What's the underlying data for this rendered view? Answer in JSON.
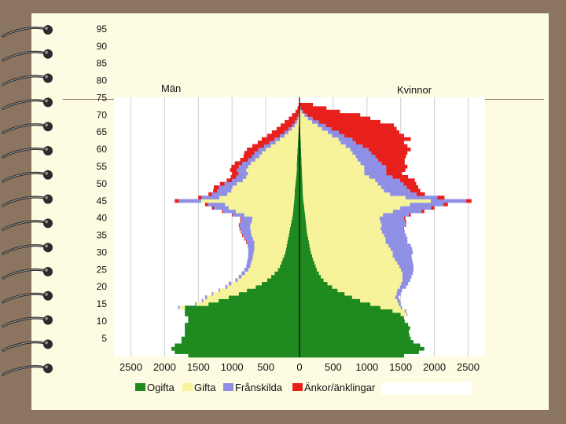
{
  "chart_data": {
    "type": "bar",
    "orientation": "population-pyramid",
    "left_title": "Män",
    "right_title": "Kvinnor",
    "x_ticks": [
      "2500",
      "2000",
      "1500",
      "1000",
      "500",
      "0",
      "500",
      "1000",
      "1500",
      "2000",
      "2500"
    ],
    "x_range": [
      -2500,
      2500
    ],
    "age_labels": [
      "5",
      "10",
      "15",
      "20",
      "25",
      "30",
      "35",
      "40",
      "45",
      "50",
      "55",
      "60",
      "65",
      "70",
      "75",
      "80",
      "85",
      "90",
      "95"
    ],
    "age_range": [
      0,
      99
    ],
    "legend": [
      {
        "key": "ogifta",
        "label": "Ogifta",
        "color": "#1f8a1f"
      },
      {
        "key": "gifta",
        "label": "Gifta",
        "color": "#f6f39a"
      },
      {
        "key": "franskilda",
        "label": "Frånskilda",
        "color": "#8f8fe6"
      },
      {
        "key": "ankor",
        "label": "Änkor/änklingar",
        "color": "#e8201c"
      }
    ],
    "men": {
      "total": [
        1650,
        1850,
        1900,
        1850,
        1750,
        1750,
        1700,
        1700,
        1700,
        1700,
        1650,
        1650,
        1700,
        1700,
        1800,
        1550,
        1450,
        1400,
        1300,
        1200,
        1100,
        1050,
        950,
        900,
        860,
        820,
        790,
        780,
        770,
        760,
        760,
        760,
        770,
        790,
        820,
        850,
        870,
        890,
        900,
        880,
        880,
        1000,
        1150,
        1300,
        1400,
        1850,
        1500,
        1350,
        1280,
        1270,
        1180,
        1080,
        1020,
        1000,
        1030,
        1010,
        960,
        880,
        830,
        820,
        780,
        700,
        620,
        560,
        480,
        410,
        340,
        280,
        220,
        160,
        110,
        60,
        30,
        10
      ],
      "ogifta": [
        1650,
        1850,
        1900,
        1850,
        1750,
        1750,
        1700,
        1700,
        1700,
        1700,
        1650,
        1650,
        1700,
        1700,
        1700,
        1350,
        1200,
        1050,
        900,
        780,
        650,
        560,
        480,
        420,
        370,
        320,
        290,
        270,
        250,
        230,
        210,
        200,
        190,
        180,
        170,
        160,
        150,
        140,
        130,
        120,
        110,
        100,
        95,
        90,
        85,
        80,
        75,
        70,
        70,
        65,
        60,
        55,
        50,
        45,
        40,
        40,
        40,
        35,
        35,
        30,
        30,
        25,
        25,
        20,
        20,
        15,
        15,
        10,
        8,
        6,
        4,
        2,
        1,
        0
      ],
      "gifta": [
        0,
        0,
        0,
        0,
        0,
        0,
        0,
        0,
        0,
        0,
        0,
        0,
        0,
        0,
        80,
        180,
        230,
        320,
        380,
        400,
        420,
        450,
        440,
        440,
        440,
        440,
        440,
        450,
        450,
        460,
        470,
        470,
        480,
        490,
        520,
        550,
        570,
        590,
        600,
        590,
        590,
        720,
        850,
        960,
        1020,
        1380,
        1120,
        1000,
        940,
        930,
        870,
        790,
        740,
        720,
        750,
        720,
        680,
        620,
        560,
        520,
        470,
        400,
        330,
        270,
        200,
        150,
        100,
        60,
        30,
        15,
        5,
        1,
        0,
        0
      ],
      "franskilda": [
        0,
        0,
        0,
        0,
        0,
        0,
        0,
        0,
        0,
        0,
        0,
        0,
        0,
        0,
        20,
        20,
        20,
        30,
        20,
        20,
        30,
        40,
        30,
        40,
        50,
        60,
        60,
        60,
        70,
        70,
        80,
        90,
        100,
        110,
        120,
        130,
        140,
        150,
        160,
        160,
        170,
        170,
        190,
        220,
        250,
        330,
        260,
        230,
        210,
        200,
        180,
        160,
        150,
        140,
        140,
        140,
        130,
        110,
        110,
        110,
        110,
        100,
        90,
        80,
        70,
        60,
        50,
        40,
        30,
        20,
        10,
        5,
        2,
        0
      ],
      "ankor": [
        0,
        0,
        0,
        0,
        0,
        0,
        0,
        0,
        0,
        0,
        0,
        0,
        0,
        0,
        0,
        0,
        0,
        0,
        0,
        0,
        0,
        0,
        0,
        0,
        0,
        0,
        0,
        0,
        0,
        0,
        0,
        0,
        0,
        10,
        10,
        10,
        10,
        10,
        10,
        10,
        10,
        10,
        15,
        30,
        45,
        60,
        50,
        50,
        60,
        75,
        70,
        80,
        80,
        95,
        100,
        110,
        110,
        115,
        125,
        150,
        170,
        175,
        175,
        190,
        190,
        185,
        175,
        170,
        152,
        119,
        91,
        52,
        27,
        10
      ]
    },
    "women": {
      "total": [
        1550,
        1770,
        1850,
        1790,
        1690,
        1650,
        1630,
        1620,
        1640,
        1610,
        1560,
        1550,
        1600,
        1580,
        1520,
        1500,
        1490,
        1470,
        1500,
        1520,
        1580,
        1610,
        1640,
        1660,
        1680,
        1690,
        1690,
        1680,
        1670,
        1660,
        1680,
        1670,
        1650,
        1600,
        1600,
        1580,
        1560,
        1550,
        1580,
        1580,
        1570,
        1650,
        1850,
        2000,
        2200,
        2550,
        2150,
        1860,
        1790,
        1760,
        1730,
        1710,
        1610,
        1520,
        1570,
        1600,
        1560,
        1560,
        1580,
        1600,
        1650,
        1600,
        1550,
        1650,
        1550,
        1480,
        1440,
        1400,
        1200,
        1050,
        900,
        600,
        400,
        200
      ],
      "ogifta": [
        1550,
        1770,
        1850,
        1790,
        1690,
        1650,
        1630,
        1620,
        1640,
        1610,
        1560,
        1550,
        1500,
        1380,
        1200,
        1050,
        900,
        780,
        660,
        560,
        480,
        410,
        350,
        310,
        280,
        250,
        230,
        210,
        190,
        175,
        160,
        150,
        140,
        130,
        120,
        110,
        100,
        95,
        90,
        85,
        80,
        75,
        70,
        65,
        60,
        55,
        50,
        48,
        46,
        44,
        42,
        40,
        38,
        36,
        34,
        32,
        30,
        28,
        26,
        24,
        22,
        20,
        18,
        16,
        14,
        12,
        10,
        8,
        6,
        4,
        3,
        2,
        1,
        0
      ],
      "gifta": [
        0,
        0,
        0,
        0,
        0,
        0,
        0,
        0,
        0,
        0,
        0,
        0,
        90,
        180,
        300,
        420,
        550,
        640,
        760,
        880,
        990,
        1080,
        1150,
        1180,
        1200,
        1200,
        1180,
        1160,
        1140,
        1120,
        1140,
        1120,
        1100,
        1060,
        1060,
        1040,
        1020,
        1000,
        1020,
        1010,
        1000,
        1050,
        1200,
        1310,
        1450,
        1800,
        1420,
        1250,
        1140,
        1100,
        1060,
        1030,
        950,
        880,
        880,
        880,
        840,
        800,
        780,
        740,
        700,
        640,
        580,
        540,
        460,
        400,
        320,
        260,
        180,
        120,
        70,
        30,
        10,
        2
      ],
      "franskilda": [
        0,
        0,
        0,
        0,
        0,
        0,
        0,
        0,
        0,
        0,
        0,
        0,
        10,
        20,
        20,
        30,
        40,
        50,
        60,
        70,
        90,
        100,
        110,
        130,
        150,
        180,
        200,
        220,
        240,
        260,
        280,
        300,
        310,
        300,
        300,
        300,
        310,
        310,
        320,
        330,
        330,
        350,
        390,
        420,
        460,
        500,
        440,
        380,
        370,
        360,
        360,
        350,
        330,
        310,
        310,
        310,
        300,
        290,
        280,
        270,
        260,
        240,
        220,
        200,
        180,
        160,
        140,
        120,
        100,
        70,
        40,
        20,
        8,
        2
      ],
      "ankor": [
        0,
        0,
        0,
        0,
        0,
        0,
        0,
        0,
        0,
        0,
        0,
        0,
        0,
        0,
        0,
        0,
        0,
        0,
        0,
        0,
        0,
        0,
        0,
        0,
        0,
        0,
        0,
        0,
        0,
        0,
        0,
        0,
        0,
        0,
        0,
        0,
        0,
        5,
        10,
        15,
        20,
        25,
        35,
        45,
        60,
        75,
        100,
        120,
        140,
        160,
        180,
        210,
        220,
        220,
        270,
        300,
        330,
        380,
        440,
        520,
        600,
        640,
        700,
        830,
        870,
        880,
        960,
        1010,
        910,
        850,
        781,
        548,
        376,
        196
      ]
    }
  }
}
